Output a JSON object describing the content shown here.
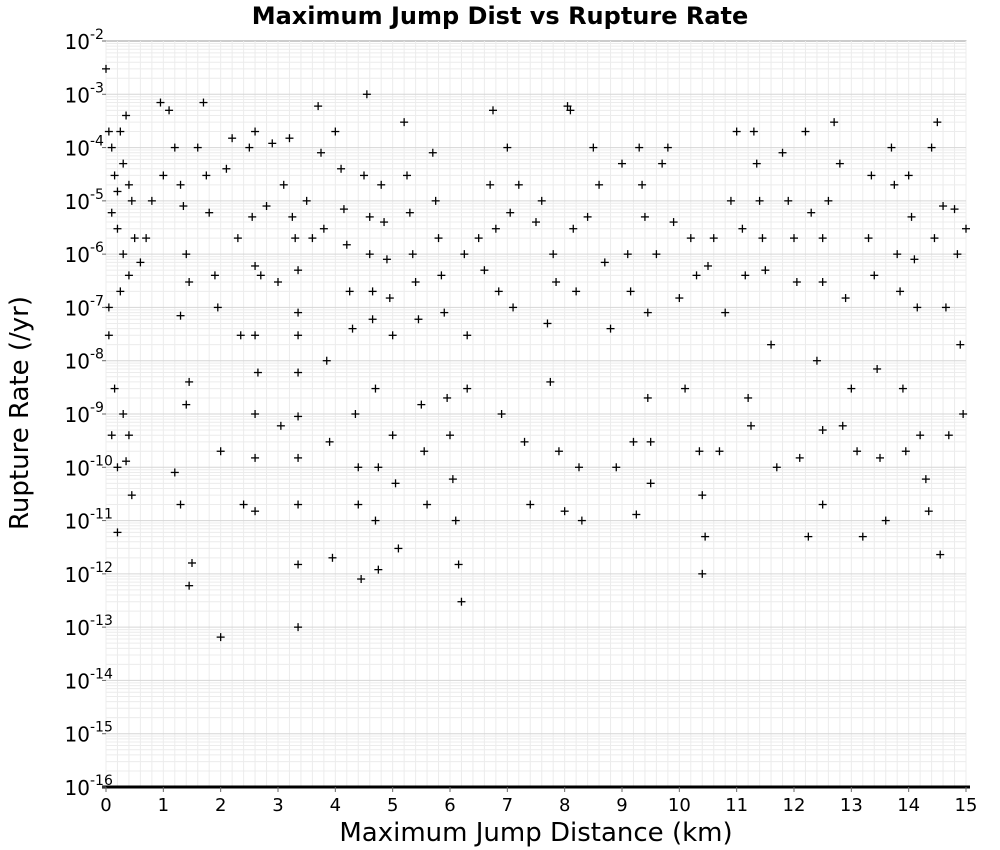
{
  "chart_data": {
    "type": "scatter",
    "title": "Maximum Jump Dist vs Rupture Rate",
    "xlabel": "Maximum Jump Distance (km)",
    "ylabel": "Rupture Rate (/yr)",
    "xlim": [
      0,
      15
    ],
    "ylim": [
      1e-16,
      0.01
    ],
    "yscale": "log",
    "grid": true,
    "marker": "+",
    "marker_color": "#000000",
    "x_tick_labels": [
      "0",
      "1",
      "2",
      "3",
      "4",
      "5",
      "6",
      "7",
      "8",
      "9",
      "10",
      "11",
      "12",
      "13",
      "14",
      "15"
    ],
    "y_tick_labels": [
      {
        "base": "10",
        "exp": "-2"
      },
      {
        "base": "10",
        "exp": "-3"
      },
      {
        "base": "10",
        "exp": "-4"
      },
      {
        "base": "10",
        "exp": "-5"
      },
      {
        "base": "10",
        "exp": "-6"
      },
      {
        "base": "10",
        "exp": "-7"
      },
      {
        "base": "10",
        "exp": "-8"
      },
      {
        "base": "10",
        "exp": "-9"
      },
      {
        "base": "10",
        "exp": "-10"
      },
      {
        "base": "10",
        "exp": "-11"
      },
      {
        "base": "10",
        "exp": "-12"
      },
      {
        "base": "10",
        "exp": "-13"
      },
      {
        "base": "10",
        "exp": "-14"
      },
      {
        "base": "10",
        "exp": "-15"
      },
      {
        "base": "10",
        "exp": "-16"
      }
    ],
    "points": [
      [
        0.0,
        0.003
      ],
      [
        0.05,
        0.0002
      ],
      [
        0.1,
        0.0001
      ],
      [
        0.15,
        3e-05
      ],
      [
        0.2,
        1.5e-05
      ],
      [
        0.25,
        0.0002
      ],
      [
        0.3,
        5e-05
      ],
      [
        0.35,
        0.0004
      ],
      [
        0.4,
        2e-05
      ],
      [
        0.45,
        1e-05
      ],
      [
        0.5,
        2e-06
      ],
      [
        0.3,
        1e-06
      ],
      [
        0.2,
        3e-06
      ],
      [
        0.1,
        6e-06
      ],
      [
        0.05,
        1e-07
      ],
      [
        0.25,
        2e-07
      ],
      [
        0.4,
        4e-07
      ],
      [
        0.15,
        3e-09
      ],
      [
        0.3,
        1e-09
      ],
      [
        0.4,
        4e-10
      ],
      [
        0.2,
        1e-10
      ],
      [
        0.35,
        1.3e-10
      ],
      [
        0.45,
        3e-11
      ],
      [
        0.2,
        6e-12
      ],
      [
        0.05,
        3e-08
      ],
      [
        0.1,
        4e-10
      ],
      [
        0.6,
        7e-07
      ],
      [
        0.7,
        2e-06
      ],
      [
        0.8,
        1e-05
      ],
      [
        0.95,
        0.0007
      ],
      [
        1.0,
        3e-05
      ],
      [
        1.1,
        0.0005
      ],
      [
        1.2,
        0.0001
      ],
      [
        1.3,
        2e-05
      ],
      [
        1.35,
        8e-06
      ],
      [
        1.4,
        1e-06
      ],
      [
        1.45,
        3e-07
      ],
      [
        1.3,
        7e-08
      ],
      [
        1.4,
        1.5e-09
      ],
      [
        1.45,
        4e-09
      ],
      [
        1.2,
        8e-11
      ],
      [
        1.3,
        2e-11
      ],
      [
        1.45,
        6e-13
      ],
      [
        1.5,
        1.6e-12
      ],
      [
        1.6,
        0.0001
      ],
      [
        1.7,
        0.0007
      ],
      [
        1.75,
        3e-05
      ],
      [
        1.8,
        6e-06
      ],
      [
        1.9,
        4e-07
      ],
      [
        1.95,
        1e-07
      ],
      [
        2.0,
        2e-10
      ],
      [
        2.0,
        6.5e-14
      ],
      [
        2.1,
        4e-05
      ],
      [
        2.2,
        0.00015
      ],
      [
        2.3,
        2e-06
      ],
      [
        2.35,
        3e-08
      ],
      [
        2.4,
        2e-11
      ],
      [
        2.5,
        0.0001
      ],
      [
        2.55,
        5e-06
      ],
      [
        2.6,
        0.0002
      ],
      [
        2.6,
        6e-07
      ],
      [
        2.6,
        3e-08
      ],
      [
        2.65,
        6e-09
      ],
      [
        2.6,
        1e-09
      ],
      [
        2.6,
        1.5e-10
      ],
      [
        2.6,
        1.5e-11
      ],
      [
        2.7,
        4e-07
      ],
      [
        2.8,
        8e-06
      ],
      [
        2.9,
        0.00012
      ],
      [
        3.0,
        3e-07
      ],
      [
        3.05,
        6e-10
      ],
      [
        3.1,
        2e-05
      ],
      [
        3.2,
        0.00015
      ],
      [
        3.25,
        5e-06
      ],
      [
        3.3,
        2e-06
      ],
      [
        3.35,
        5e-07
      ],
      [
        3.35,
        8e-08
      ],
      [
        3.35,
        3e-08
      ],
      [
        3.35,
        6e-09
      ],
      [
        3.35,
        9e-10
      ],
      [
        3.35,
        1.5e-10
      ],
      [
        3.35,
        2e-11
      ],
      [
        3.35,
        1.5e-12
      ],
      [
        3.35,
        1e-13
      ],
      [
        3.5,
        1e-05
      ],
      [
        3.6,
        2e-06
      ],
      [
        3.7,
        0.0006
      ],
      [
        3.75,
        8e-05
      ],
      [
        3.8,
        3e-06
      ],
      [
        3.85,
        1e-08
      ],
      [
        3.9,
        3e-10
      ],
      [
        3.95,
        2e-12
      ],
      [
        4.0,
        0.0002
      ],
      [
        4.1,
        4e-05
      ],
      [
        4.15,
        7e-06
      ],
      [
        4.2,
        1.5e-06
      ],
      [
        4.25,
        2e-07
      ],
      [
        4.3,
        4e-08
      ],
      [
        4.35,
        1e-09
      ],
      [
        4.4,
        1e-10
      ],
      [
        4.4,
        2e-11
      ],
      [
        4.45,
        8e-13
      ],
      [
        4.5,
        3e-05
      ],
      [
        4.55,
        0.001
      ],
      [
        4.6,
        5e-06
      ],
      [
        4.6,
        1e-06
      ],
      [
        4.65,
        2e-07
      ],
      [
        4.65,
        6e-08
      ],
      [
        4.7,
        3e-09
      ],
      [
        4.75,
        1e-10
      ],
      [
        4.7,
        1e-11
      ],
      [
        4.75,
        1.2e-12
      ],
      [
        4.8,
        2e-05
      ],
      [
        4.85,
        4e-06
      ],
      [
        4.9,
        8e-07
      ],
      [
        4.95,
        1.5e-07
      ],
      [
        5.0,
        3e-08
      ],
      [
        5.0,
        4e-10
      ],
      [
        5.05,
        5e-11
      ],
      [
        5.1,
        3e-12
      ],
      [
        5.2,
        0.0003
      ],
      [
        5.25,
        3e-05
      ],
      [
        5.3,
        6e-06
      ],
      [
        5.35,
        1e-06
      ],
      [
        5.4,
        3e-07
      ],
      [
        5.45,
        6e-08
      ],
      [
        5.5,
        1.5e-09
      ],
      [
        5.55,
        2e-10
      ],
      [
        5.6,
        2e-11
      ],
      [
        5.7,
        8e-05
      ],
      [
        5.75,
        1e-05
      ],
      [
        5.8,
        2e-06
      ],
      [
        5.85,
        4e-07
      ],
      [
        5.9,
        8e-08
      ],
      [
        5.95,
        2e-09
      ],
      [
        6.0,
        4e-10
      ],
      [
        6.05,
        6e-11
      ],
      [
        6.1,
        1e-11
      ],
      [
        6.15,
        1.5e-12
      ],
      [
        6.2,
        3e-13
      ],
      [
        6.25,
        1e-06
      ],
      [
        6.3,
        3e-08
      ],
      [
        6.3,
        3e-09
      ],
      [
        6.5,
        2e-06
      ],
      [
        6.6,
        5e-07
      ],
      [
        6.7,
        2e-05
      ],
      [
        6.75,
        0.0005
      ],
      [
        6.8,
        3e-06
      ],
      [
        6.85,
        2e-07
      ],
      [
        6.9,
        1e-09
      ],
      [
        7.0,
        0.0001
      ],
      [
        7.05,
        6e-06
      ],
      [
        7.1,
        1e-07
      ],
      [
        7.2,
        2e-05
      ],
      [
        7.3,
        3e-10
      ],
      [
        7.4,
        2e-11
      ],
      [
        7.5,
        4e-06
      ],
      [
        7.6,
        1e-05
      ],
      [
        7.7,
        5e-08
      ],
      [
        7.75,
        4e-09
      ],
      [
        7.8,
        1e-06
      ],
      [
        7.85,
        3e-07
      ],
      [
        7.9,
        2e-10
      ],
      [
        8.0,
        1.5e-11
      ],
      [
        8.05,
        0.0006
      ],
      [
        8.1,
        0.0005
      ],
      [
        8.15,
        3e-06
      ],
      [
        8.2,
        2e-07
      ],
      [
        8.25,
        1e-10
      ],
      [
        8.3,
        1e-11
      ],
      [
        8.4,
        5e-06
      ],
      [
        8.5,
        0.0001
      ],
      [
        8.6,
        2e-05
      ],
      [
        8.7,
        7e-07
      ],
      [
        8.8,
        4e-08
      ],
      [
        8.9,
        1e-10
      ],
      [
        9.0,
        5e-05
      ],
      [
        9.1,
        1e-06
      ],
      [
        9.15,
        2e-07
      ],
      [
        9.2,
        3e-10
      ],
      [
        9.25,
        1.3e-11
      ],
      [
        9.3,
        0.0001
      ],
      [
        9.35,
        2e-05
      ],
      [
        9.4,
        5e-06
      ],
      [
        9.45,
        8e-08
      ],
      [
        9.45,
        2e-09
      ],
      [
        9.5,
        3e-10
      ],
      [
        9.5,
        5e-11
      ],
      [
        9.6,
        1e-06
      ],
      [
        9.7,
        5e-05
      ],
      [
        9.8,
        0.0001
      ],
      [
        9.9,
        4e-06
      ],
      [
        10.0,
        1.5e-07
      ],
      [
        10.1,
        3e-09
      ],
      [
        10.2,
        2e-06
      ],
      [
        10.3,
        4e-07
      ],
      [
        10.35,
        2e-10
      ],
      [
        10.4,
        3e-11
      ],
      [
        10.45,
        5e-12
      ],
      [
        10.4,
        1e-12
      ],
      [
        10.5,
        6e-07
      ],
      [
        10.6,
        2e-06
      ],
      [
        10.7,
        2e-10
      ],
      [
        10.8,
        8e-08
      ],
      [
        10.9,
        1e-05
      ],
      [
        11.0,
        0.0002
      ],
      [
        11.1,
        3e-06
      ],
      [
        11.15,
        4e-07
      ],
      [
        11.2,
        2e-09
      ],
      [
        11.25,
        6e-10
      ],
      [
        11.3,
        0.0002
      ],
      [
        11.35,
        5e-05
      ],
      [
        11.4,
        1e-05
      ],
      [
        11.45,
        2e-06
      ],
      [
        11.5,
        5e-07
      ],
      [
        11.6,
        2e-08
      ],
      [
        11.7,
        1e-10
      ],
      [
        11.8,
        8e-05
      ],
      [
        11.9,
        1e-05
      ],
      [
        12.0,
        2e-06
      ],
      [
        12.05,
        3e-07
      ],
      [
        12.1,
        1.5e-10
      ],
      [
        12.2,
        0.0002
      ],
      [
        12.25,
        5e-12
      ],
      [
        12.3,
        6e-06
      ],
      [
        12.4,
        1e-08
      ],
      [
        12.5,
        2e-06
      ],
      [
        12.5,
        3e-07
      ],
      [
        12.5,
        5e-10
      ],
      [
        12.5,
        2e-11
      ],
      [
        12.6,
        1e-05
      ],
      [
        12.7,
        0.0003
      ],
      [
        12.8,
        5e-05
      ],
      [
        12.85,
        6e-10
      ],
      [
        12.9,
        1.5e-07
      ],
      [
        13.0,
        3e-09
      ],
      [
        13.1,
        2e-10
      ],
      [
        13.2,
        5e-12
      ],
      [
        13.3,
        2e-06
      ],
      [
        13.35,
        3e-05
      ],
      [
        13.4,
        4e-07
      ],
      [
        13.45,
        7e-09
      ],
      [
        13.5,
        1.5e-10
      ],
      [
        13.6,
        1e-11
      ],
      [
        13.7,
        0.0001
      ],
      [
        13.75,
        2e-05
      ],
      [
        13.8,
        1e-06
      ],
      [
        13.85,
        2e-07
      ],
      [
        13.9,
        3e-09
      ],
      [
        13.95,
        2e-10
      ],
      [
        14.0,
        3e-05
      ],
      [
        14.05,
        5e-06
      ],
      [
        14.1,
        8e-07
      ],
      [
        14.15,
        1e-07
      ],
      [
        14.2,
        4e-10
      ],
      [
        14.3,
        6e-11
      ],
      [
        14.35,
        1.5e-11
      ],
      [
        14.4,
        0.0001
      ],
      [
        14.45,
        2e-06
      ],
      [
        14.5,
        0.0003
      ],
      [
        14.55,
        2.3e-12
      ],
      [
        14.6,
        8e-06
      ],
      [
        14.65,
        1e-07
      ],
      [
        14.7,
        4e-10
      ],
      [
        14.8,
        7e-06
      ],
      [
        14.85,
        1e-06
      ],
      [
        14.9,
        2e-08
      ],
      [
        14.95,
        1e-09
      ],
      [
        15.0,
        3e-06
      ]
    ],
    "floor_points_x": [
      0.0,
      0.3,
      0.6,
      0.9,
      1.2,
      1.5,
      1.8,
      2.1,
      2.4,
      2.7,
      3.0,
      3.3,
      3.6,
      3.9,
      4.2,
      4.5,
      4.8,
      5.1,
      5.4,
      5.7,
      6.0,
      6.3,
      6.6,
      6.9,
      7.2,
      7.5,
      7.8,
      8.1,
      8.4,
      8.7,
      9.0,
      9.3,
      9.6,
      9.9,
      10.2,
      10.5,
      10.8,
      11.1,
      11.4,
      11.7,
      12.0,
      12.3,
      12.6,
      12.9,
      13.2,
      13.5,
      13.8,
      14.1,
      14.4,
      14.7,
      15.0
    ],
    "floor_y": 1e-16
  }
}
